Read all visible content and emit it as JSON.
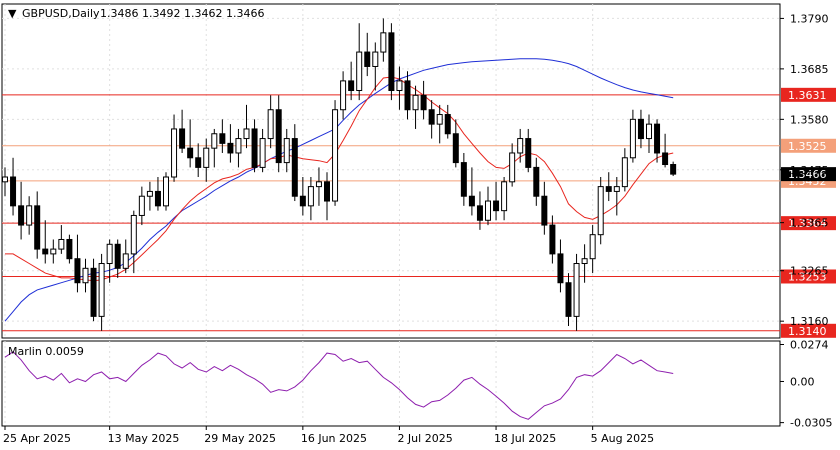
{
  "chart_data": {
    "type": "candlestick",
    "symbol_label": "GBPUSD,Daily",
    "ohlc_label": "1.3486 1.3492 1.3462 1.3466",
    "ylim": [
      1.3125,
      1.382
    ],
    "y_ticks": [
      "1.3790",
      "1.3685",
      "1.3580",
      "1.3475",
      "1.3365",
      "1.3265",
      "1.3160"
    ],
    "last_price": "1.3466",
    "x_tick_labels": [
      "25 Apr 2025",
      "13 May 2025",
      "29 May 2025",
      "16 Jun 2025",
      "2 Jul 2025",
      "18 Jul 2025",
      "5 Aug 2025"
    ],
    "x_tick_indices": [
      0,
      13,
      25,
      37,
      49,
      61,
      73
    ],
    "levels": [
      {
        "value": 1.3631,
        "label": "1.3631",
        "color": "#e8261f"
      },
      {
        "value": 1.3525,
        "label": "1.3525",
        "color": "#f4a07a"
      },
      {
        "value": 1.3452,
        "label": "1.3452",
        "color": "#f4a07a"
      },
      {
        "value": 1.3364,
        "label": "1.3364",
        "color": "#e8261f"
      },
      {
        "value": 1.3253,
        "label": "1.3253",
        "color": "#e8261f"
      },
      {
        "value": 1.314,
        "label": "1.3140",
        "color": "#e8261f"
      }
    ],
    "candles": [
      [
        1.345,
        1.348,
        1.342,
        1.346
      ],
      [
        1.346,
        1.35,
        1.338,
        1.34
      ],
      [
        1.34,
        1.345,
        1.333,
        1.336
      ],
      [
        1.336,
        1.342,
        1.334,
        1.34
      ],
      [
        1.34,
        1.343,
        1.329,
        1.331
      ],
      [
        1.331,
        1.337,
        1.328,
        1.33
      ],
      [
        1.33,
        1.333,
        1.328,
        1.331
      ],
      [
        1.331,
        1.336,
        1.33,
        1.333
      ],
      [
        1.333,
        1.334,
        1.328,
        1.329
      ],
      [
        1.329,
        1.334,
        1.322,
        1.324
      ],
      [
        1.324,
        1.329,
        1.322,
        1.327
      ],
      [
        1.327,
        1.329,
        1.316,
        1.317
      ],
      [
        1.317,
        1.33,
        1.314,
        1.328
      ],
      [
        1.328,
        1.333,
        1.324,
        1.332
      ],
      [
        1.332,
        1.333,
        1.325,
        1.327
      ],
      [
        1.327,
        1.333,
        1.326,
        1.33
      ],
      [
        1.33,
        1.339,
        1.326,
        1.338
      ],
      [
        1.338,
        1.344,
        1.336,
        1.342
      ],
      [
        1.342,
        1.345,
        1.339,
        1.343
      ],
      [
        1.343,
        1.346,
        1.339,
        1.34
      ],
      [
        1.34,
        1.347,
        1.339,
        1.346
      ],
      [
        1.346,
        1.359,
        1.345,
        1.356
      ],
      [
        1.356,
        1.36,
        1.351,
        1.352
      ],
      [
        1.352,
        1.358,
        1.348,
        1.35
      ],
      [
        1.35,
        1.353,
        1.346,
        1.348
      ],
      [
        1.348,
        1.354,
        1.345,
        1.352
      ],
      [
        1.352,
        1.356,
        1.348,
        1.355
      ],
      [
        1.355,
        1.358,
        1.351,
        1.353
      ],
      [
        1.353,
        1.357,
        1.349,
        1.351
      ],
      [
        1.351,
        1.356,
        1.348,
        1.354
      ],
      [
        1.354,
        1.361,
        1.352,
        1.356
      ],
      [
        1.356,
        1.358,
        1.347,
        1.348
      ],
      [
        1.348,
        1.356,
        1.347,
        1.354
      ],
      [
        1.354,
        1.363,
        1.352,
        1.36
      ],
      [
        1.36,
        1.363,
        1.347,
        1.349
      ],
      [
        1.349,
        1.356,
        1.347,
        1.354
      ],
      [
        1.354,
        1.357,
        1.341,
        1.342
      ],
      [
        1.342,
        1.346,
        1.338,
        1.34
      ],
      [
        1.34,
        1.346,
        1.337,
        1.344
      ],
      [
        1.344,
        1.348,
        1.34,
        1.345
      ],
      [
        1.345,
        1.347,
        1.337,
        1.341
      ],
      [
        1.341,
        1.362,
        1.34,
        1.36
      ],
      [
        1.36,
        1.368,
        1.358,
        1.366
      ],
      [
        1.366,
        1.37,
        1.362,
        1.364
      ],
      [
        1.364,
        1.378,
        1.362,
        1.372
      ],
      [
        1.372,
        1.376,
        1.367,
        1.369
      ],
      [
        1.369,
        1.374,
        1.364,
        1.372
      ],
      [
        1.372,
        1.379,
        1.37,
        1.376
      ],
      [
        1.376,
        1.378,
        1.362,
        1.364
      ],
      [
        1.364,
        1.369,
        1.36,
        1.366
      ],
      [
        1.366,
        1.368,
        1.358,
        1.36
      ],
      [
        1.36,
        1.365,
        1.356,
        1.363
      ],
      [
        1.363,
        1.366,
        1.358,
        1.36
      ],
      [
        1.36,
        1.362,
        1.354,
        1.357
      ],
      [
        1.357,
        1.361,
        1.353,
        1.359
      ],
      [
        1.359,
        1.361,
        1.354,
        1.355
      ],
      [
        1.355,
        1.358,
        1.348,
        1.349
      ],
      [
        1.349,
        1.351,
        1.34,
        1.342
      ],
      [
        1.342,
        1.348,
        1.338,
        1.34
      ],
      [
        1.34,
        1.343,
        1.335,
        1.337
      ],
      [
        1.337,
        1.344,
        1.336,
        1.341
      ],
      [
        1.341,
        1.345,
        1.337,
        1.339
      ],
      [
        1.339,
        1.346,
        1.337,
        1.345
      ],
      [
        1.345,
        1.353,
        1.344,
        1.351
      ],
      [
        1.351,
        1.356,
        1.349,
        1.354
      ],
      [
        1.354,
        1.356,
        1.347,
        1.348
      ],
      [
        1.348,
        1.35,
        1.34,
        1.342
      ],
      [
        1.342,
        1.345,
        1.334,
        1.336
      ],
      [
        1.336,
        1.338,
        1.328,
        1.33
      ],
      [
        1.33,
        1.333,
        1.322,
        1.324
      ],
      [
        1.324,
        1.326,
        1.315,
        1.317
      ],
      [
        1.317,
        1.33,
        1.314,
        1.328
      ],
      [
        1.328,
        1.332,
        1.324,
        1.329
      ],
      [
        1.329,
        1.336,
        1.326,
        1.334
      ],
      [
        1.334,
        1.346,
        1.332,
        1.344
      ],
      [
        1.344,
        1.347,
        1.341,
        1.343
      ],
      [
        1.343,
        1.346,
        1.338,
        1.344
      ],
      [
        1.344,
        1.352,
        1.343,
        1.35
      ],
      [
        1.35,
        1.36,
        1.349,
        1.358
      ],
      [
        1.358,
        1.36,
        1.352,
        1.354
      ],
      [
        1.354,
        1.359,
        1.351,
        1.357
      ],
      [
        1.357,
        1.358,
        1.349,
        1.351
      ],
      [
        1.351,
        1.355,
        1.348,
        1.3486
      ],
      [
        1.3486,
        1.3492,
        1.3462,
        1.3466
      ]
    ],
    "series": [
      {
        "values": [
          1.316,
          1.318,
          1.32,
          1.3215,
          1.3225,
          1.323,
          1.3235,
          1.324,
          1.3245,
          1.325,
          1.3255,
          1.326,
          1.3262,
          1.3266,
          1.3272,
          1.3282,
          1.3296,
          1.3312,
          1.333,
          1.3345,
          1.3358,
          1.3375,
          1.339,
          1.34,
          1.341,
          1.342,
          1.3432,
          1.3442,
          1.3452,
          1.346,
          1.347,
          1.3478,
          1.3488,
          1.3498,
          1.3506,
          1.3514,
          1.352,
          1.3528,
          1.3536,
          1.3544,
          1.3552,
          1.356,
          1.3578,
          1.3595,
          1.361,
          1.3622,
          1.3634,
          1.3645,
          1.3656,
          1.3664,
          1.367,
          1.3676,
          1.3682,
          1.3686,
          1.369,
          1.3694,
          1.3696,
          1.3698,
          1.37,
          1.3701,
          1.3702,
          1.3703,
          1.3704,
          1.3705,
          1.3706,
          1.3706,
          1.3706,
          1.3705,
          1.3703,
          1.37,
          1.3696,
          1.369,
          1.3682,
          1.3674,
          1.3666,
          1.3659,
          1.3652,
          1.3646,
          1.3641,
          1.3637,
          1.3634,
          1.3631,
          1.3628,
          1.3625
        ],
        "color": "#1f2fd6"
      },
      {
        "values": [
          1.33,
          1.33,
          1.329,
          1.328,
          1.327,
          1.326,
          1.3255,
          1.325,
          1.325,
          1.3248,
          1.3246,
          1.3244,
          1.3246,
          1.3252,
          1.3258,
          1.3268,
          1.3282,
          1.3298,
          1.3314,
          1.333,
          1.3348,
          1.3372,
          1.3392,
          1.341,
          1.3424,
          1.3436,
          1.3448,
          1.3456,
          1.346,
          1.3466,
          1.3476,
          1.348,
          1.3488,
          1.3498,
          1.35,
          1.3506,
          1.3502,
          1.3498,
          1.3496,
          1.3494,
          1.349,
          1.3508,
          1.3536,
          1.3566,
          1.3598,
          1.3622,
          1.3646,
          1.3666,
          1.3668,
          1.3664,
          1.3652,
          1.3642,
          1.363,
          1.3616,
          1.3604,
          1.3592,
          1.3574,
          1.355,
          1.353,
          1.351,
          1.3492,
          1.348,
          1.3478,
          1.3488,
          1.3502,
          1.351,
          1.3506,
          1.3492,
          1.3468,
          1.344,
          1.3404,
          1.3388,
          1.3376,
          1.3372,
          1.338,
          1.339,
          1.3402,
          1.342,
          1.3444,
          1.3466,
          1.3488,
          1.35,
          1.3506,
          1.351
        ],
        "color": "#e8261f"
      }
    ],
    "indicator": {
      "label": "Marlin 0.0059",
      "ylim": [
        -0.033,
        0.03
      ],
      "y_ticks": [
        "0.0274",
        "0.00",
        "-0.0305"
      ],
      "values": [
        0.018,
        0.022,
        0.016,
        0.008,
        0.002,
        0.004,
        0.001,
        0.006,
        -0.001,
        0.002,
        0.0,
        0.005,
        0.007,
        0.002,
        0.003,
        0.0,
        0.006,
        0.012,
        0.016,
        0.021,
        0.019,
        0.013,
        0.01,
        0.014,
        0.009,
        0.007,
        0.011,
        0.008,
        0.012,
        0.009,
        0.005,
        0.002,
        -0.002,
        -0.008,
        -0.006,
        -0.007,
        -0.004,
        0.001,
        0.008,
        0.014,
        0.021,
        0.02,
        0.015,
        0.017,
        0.014,
        0.015,
        0.009,
        0.003,
        -0.001,
        -0.006,
        -0.012,
        -0.017,
        -0.019,
        -0.015,
        -0.014,
        -0.01,
        -0.005,
        0.001,
        0.003,
        -0.002,
        -0.006,
        -0.011,
        -0.016,
        -0.022,
        -0.026,
        -0.028,
        -0.023,
        -0.018,
        -0.016,
        -0.013,
        -0.006,
        0.003,
        0.005,
        0.004,
        0.008,
        0.014,
        0.02,
        0.017,
        0.013,
        0.016,
        0.012,
        0.008,
        0.007,
        0.0059
      ]
    },
    "colors": {
      "bull": "#ffffff",
      "bear": "#000000",
      "indicator": "#8e1fae",
      "grid": "#e0e0e0"
    }
  }
}
